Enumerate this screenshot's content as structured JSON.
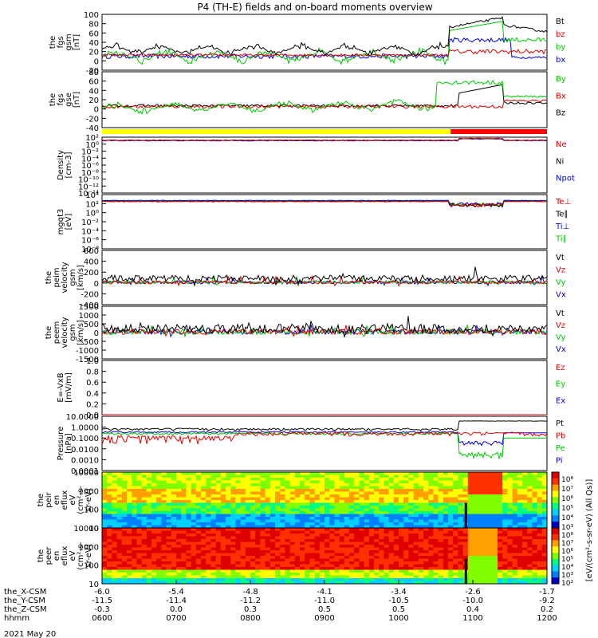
{
  "title": "P4 (TH-E) fields and on-board moments overview",
  "date_label": "2021 May 20",
  "colors": {
    "black": "#000000",
    "red": "#e00000",
    "green": "#00c800",
    "blue": "#0000e0",
    "yellow": "#ffff00",
    "bar_red": "#ff0000"
  },
  "status_bar": {
    "segments": [
      {
        "from": "0600",
        "to": "1042",
        "color": "yellow"
      },
      {
        "from": "1042",
        "to": "1200",
        "color": "bar_red"
      }
    ]
  },
  "chart_data": [
    {
      "id": "fgs_gsm",
      "type": "line",
      "ylabel": [
        "the",
        "fgs",
        "gsm",
        "[nT]"
      ],
      "yticks": [
        "100",
        "80",
        "60",
        "40",
        "20",
        "0",
        "-20"
      ],
      "ylim": [
        -20,
        100
      ],
      "series": [
        {
          "name": "Bt",
          "color": "black"
        },
        {
          "name": "bz",
          "color": "red"
        },
        {
          "name": "by",
          "color": "green"
        },
        {
          "name": "bx",
          "color": "blue"
        }
      ]
    },
    {
      "id": "fgs_gse",
      "type": "line",
      "ylabel": [
        "the",
        "fgs",
        "gse",
        "[nT]"
      ],
      "yticks": [
        "80",
        "60",
        "40",
        "20",
        "0",
        "-20",
        "-40"
      ],
      "ylim": [
        -50,
        80
      ],
      "series": [
        {
          "name": "By",
          "color": "green"
        },
        {
          "name": "Bx",
          "color": "red"
        },
        {
          "name": "Bz",
          "color": "black"
        }
      ]
    },
    {
      "id": "density",
      "type": "line",
      "ylabel": [
        "Density",
        "[cm-3]"
      ],
      "yticks": [
        "10²",
        "10⁰",
        "10⁻²",
        "10⁻⁴",
        "10⁻⁶",
        "10⁻⁸",
        "10⁻¹⁰",
        "10⁻¹²",
        "10⁻¹⁴"
      ],
      "ylim": [
        -14,
        2
      ],
      "log": true,
      "series": [
        {
          "name": "Ne",
          "color": "red"
        },
        {
          "name": "Ni",
          "color": "black"
        },
        {
          "name": "Npot",
          "color": "blue"
        }
      ]
    },
    {
      "id": "temp",
      "type": "line",
      "ylabel": [
        "mgqt3",
        "[eV]"
      ],
      "yticks": [
        "10⁴",
        "10²",
        "10⁰",
        "10⁻²",
        "10⁻⁴",
        "10⁻⁶",
        "10⁻⁸"
      ],
      "ylim": [
        -8,
        4
      ],
      "log": true,
      "series": [
        {
          "name": "Te⊥",
          "color": "red"
        },
        {
          "name": "Te∥",
          "color": "black"
        },
        {
          "name": "Ti⊥",
          "color": "blue"
        },
        {
          "name": "Ti∥",
          "color": "green"
        }
      ]
    },
    {
      "id": "peim",
      "type": "line",
      "ylabel": [
        "the",
        "peim",
        "velocity",
        "gsm",
        "[km/s]"
      ],
      "yticks": [
        "600",
        "400",
        "200",
        "0",
        "-200",
        "-400"
      ],
      "ylim": [
        -400,
        600
      ],
      "series": [
        {
          "name": "Vt",
          "color": "black"
        },
        {
          "name": "Vz",
          "color": "red"
        },
        {
          "name": "Vy",
          "color": "green"
        },
        {
          "name": "Vx",
          "color": "blue"
        }
      ]
    },
    {
      "id": "peem",
      "type": "line",
      "ylabel": [
        "the",
        "peem",
        "velocity",
        "gsm",
        "[km/s]"
      ],
      "yticks": [
        "1500",
        "1000",
        "500",
        "0",
        "-500",
        "-1000",
        "-1500"
      ],
      "ylim": [
        -1500,
        1500
      ],
      "series": [
        {
          "name": "Vt",
          "color": "black"
        },
        {
          "name": "Vz",
          "color": "red"
        },
        {
          "name": "Vy",
          "color": "green"
        },
        {
          "name": "Vx",
          "color": "blue"
        }
      ]
    },
    {
      "id": "efield",
      "type": "line",
      "ylabel": [
        "E=-VxB",
        "[mV/m]"
      ],
      "yticks": [
        "1.0",
        "0.8",
        "0.6",
        "0.4",
        "0.2",
        "0.0"
      ],
      "ylim": [
        0,
        1
      ],
      "series": [
        {
          "name": "Ez",
          "color": "red"
        },
        {
          "name": "Ey",
          "color": "green"
        },
        {
          "name": "Ex",
          "color": "blue"
        }
      ]
    },
    {
      "id": "pressure",
      "type": "line",
      "ylabel": [
        "Pressure",
        "[nPa]"
      ],
      "yticks": [
        "10.0000",
        "1.0000",
        "0.1000",
        "0.0100",
        "0.0010",
        "0.0001"
      ],
      "ylim": [
        -4,
        1
      ],
      "log": true,
      "series": [
        {
          "name": "Pt",
          "color": "black"
        },
        {
          "name": "Pb",
          "color": "red"
        },
        {
          "name": "Pe",
          "color": "green"
        },
        {
          "name": "Pi",
          "color": "blue"
        }
      ]
    },
    {
      "id": "peir",
      "type": "heatmap",
      "ylabel": [
        "the",
        "peir",
        "en",
        "eflux",
        "eV",
        "(cm²-s-",
        "sr-eV)"
      ],
      "yticks": [
        "10000",
        "1000",
        "100",
        "10"
      ],
      "ylim": [
        1,
        4.5
      ],
      "log": true,
      "colorbar_ticks": [
        "10⁸",
        "10⁷",
        "10⁶",
        "10⁵",
        "10⁴",
        "10³"
      ]
    },
    {
      "id": "peer",
      "type": "heatmap",
      "ylabel": [
        "the",
        "peer",
        "en",
        "eflux",
        "eV",
        "(cm²-s-",
        "sr-eV)"
      ],
      "yticks": [
        "10000",
        "1000",
        "100",
        "10"
      ],
      "ylim": [
        1,
        4.5
      ],
      "log": true,
      "colorbar_ticks": [
        "10⁸",
        "10⁷",
        "10⁶",
        "10⁵",
        "10⁴",
        "10³",
        "10²"
      ]
    }
  ],
  "colorbar_label": "[eV/(cm²-s-sr-eV) (All Qs)]",
  "x_axis": {
    "rows": [
      {
        "label": "the_X-CSM",
        "values": [
          "-6.0",
          "-5.4",
          "-4.8",
          "-4.1",
          "-3.4",
          "-2.6",
          "-1.7"
        ]
      },
      {
        "label": "the_Y-CSM",
        "values": [
          "-11.5",
          "-11.4",
          "-11.2",
          "-11.0",
          "-10.5",
          "-10.0",
          "-9.2"
        ]
      },
      {
        "label": "the_Z-CSM",
        "values": [
          "-0.3",
          "0.0",
          "0.3",
          "0.5",
          "0.5",
          "0.4",
          "0.2"
        ]
      },
      {
        "label": "hhmm",
        "values": [
          "0600",
          "0700",
          "0800",
          "0900",
          "1000",
          "1100",
          "1200"
        ]
      }
    ]
  }
}
